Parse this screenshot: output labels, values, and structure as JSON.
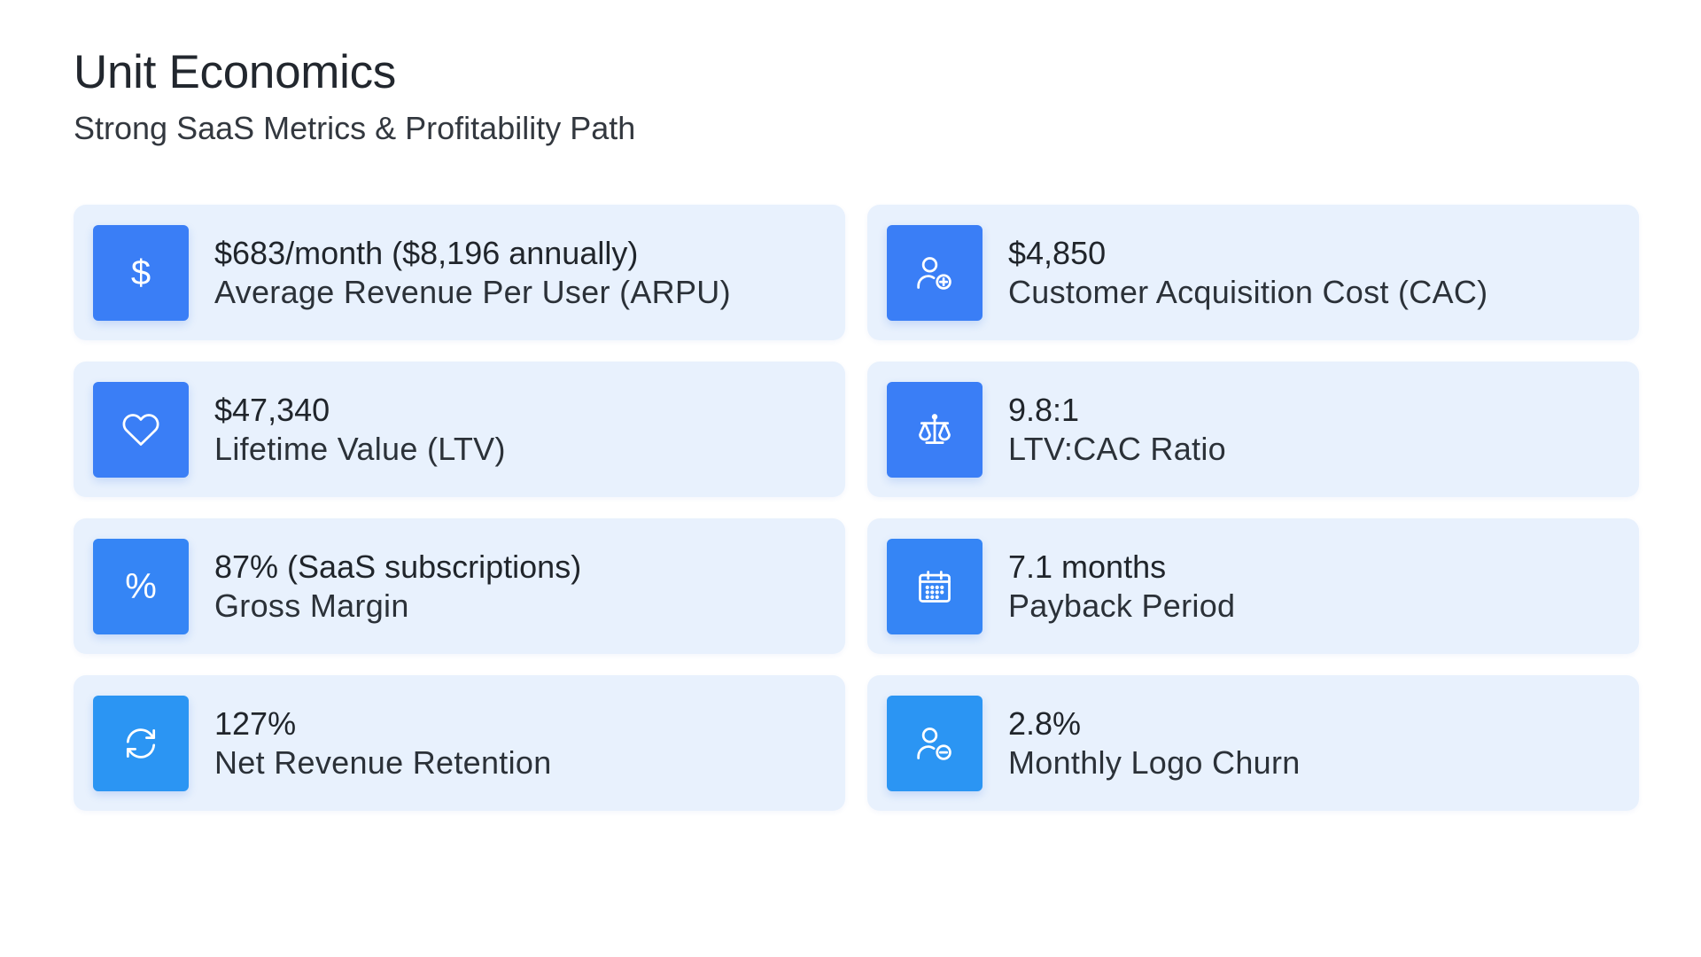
{
  "header": {
    "title": "Unit Economics",
    "subtitle": "Strong SaaS Metrics & Profitability Path"
  },
  "metrics": [
    {
      "icon": "dollar-icon",
      "color": "#3a7ef6",
      "value": "$683/month ($8,196 annually)",
      "label": "Average Revenue Per User (ARPU)"
    },
    {
      "icon": "user-plus-icon",
      "color": "#3a7ef6",
      "value": "$4,850",
      "label": "Customer Acquisition Cost (CAC)"
    },
    {
      "icon": "heart-icon",
      "color": "#3a7ef6",
      "value": "$47,340",
      "label": "Lifetime Value (LTV)"
    },
    {
      "icon": "scale-icon",
      "color": "#3a7ef6",
      "value": "9.8:1",
      "label": "LTV:CAC Ratio"
    },
    {
      "icon": "percent-icon",
      "color": "#3585f5",
      "value": "87% (SaaS subscriptions)",
      "label": "Gross Margin"
    },
    {
      "icon": "calendar-icon",
      "color": "#3585f5",
      "value": "7.1 months",
      "label": "Payback Period"
    },
    {
      "icon": "refresh-icon",
      "color": "#2b95f3",
      "value": "127%",
      "label": "Net Revenue Retention"
    },
    {
      "icon": "user-minus-icon",
      "color": "#2b95f3",
      "value": "2.8%",
      "label": "Monthly Logo Churn"
    }
  ]
}
